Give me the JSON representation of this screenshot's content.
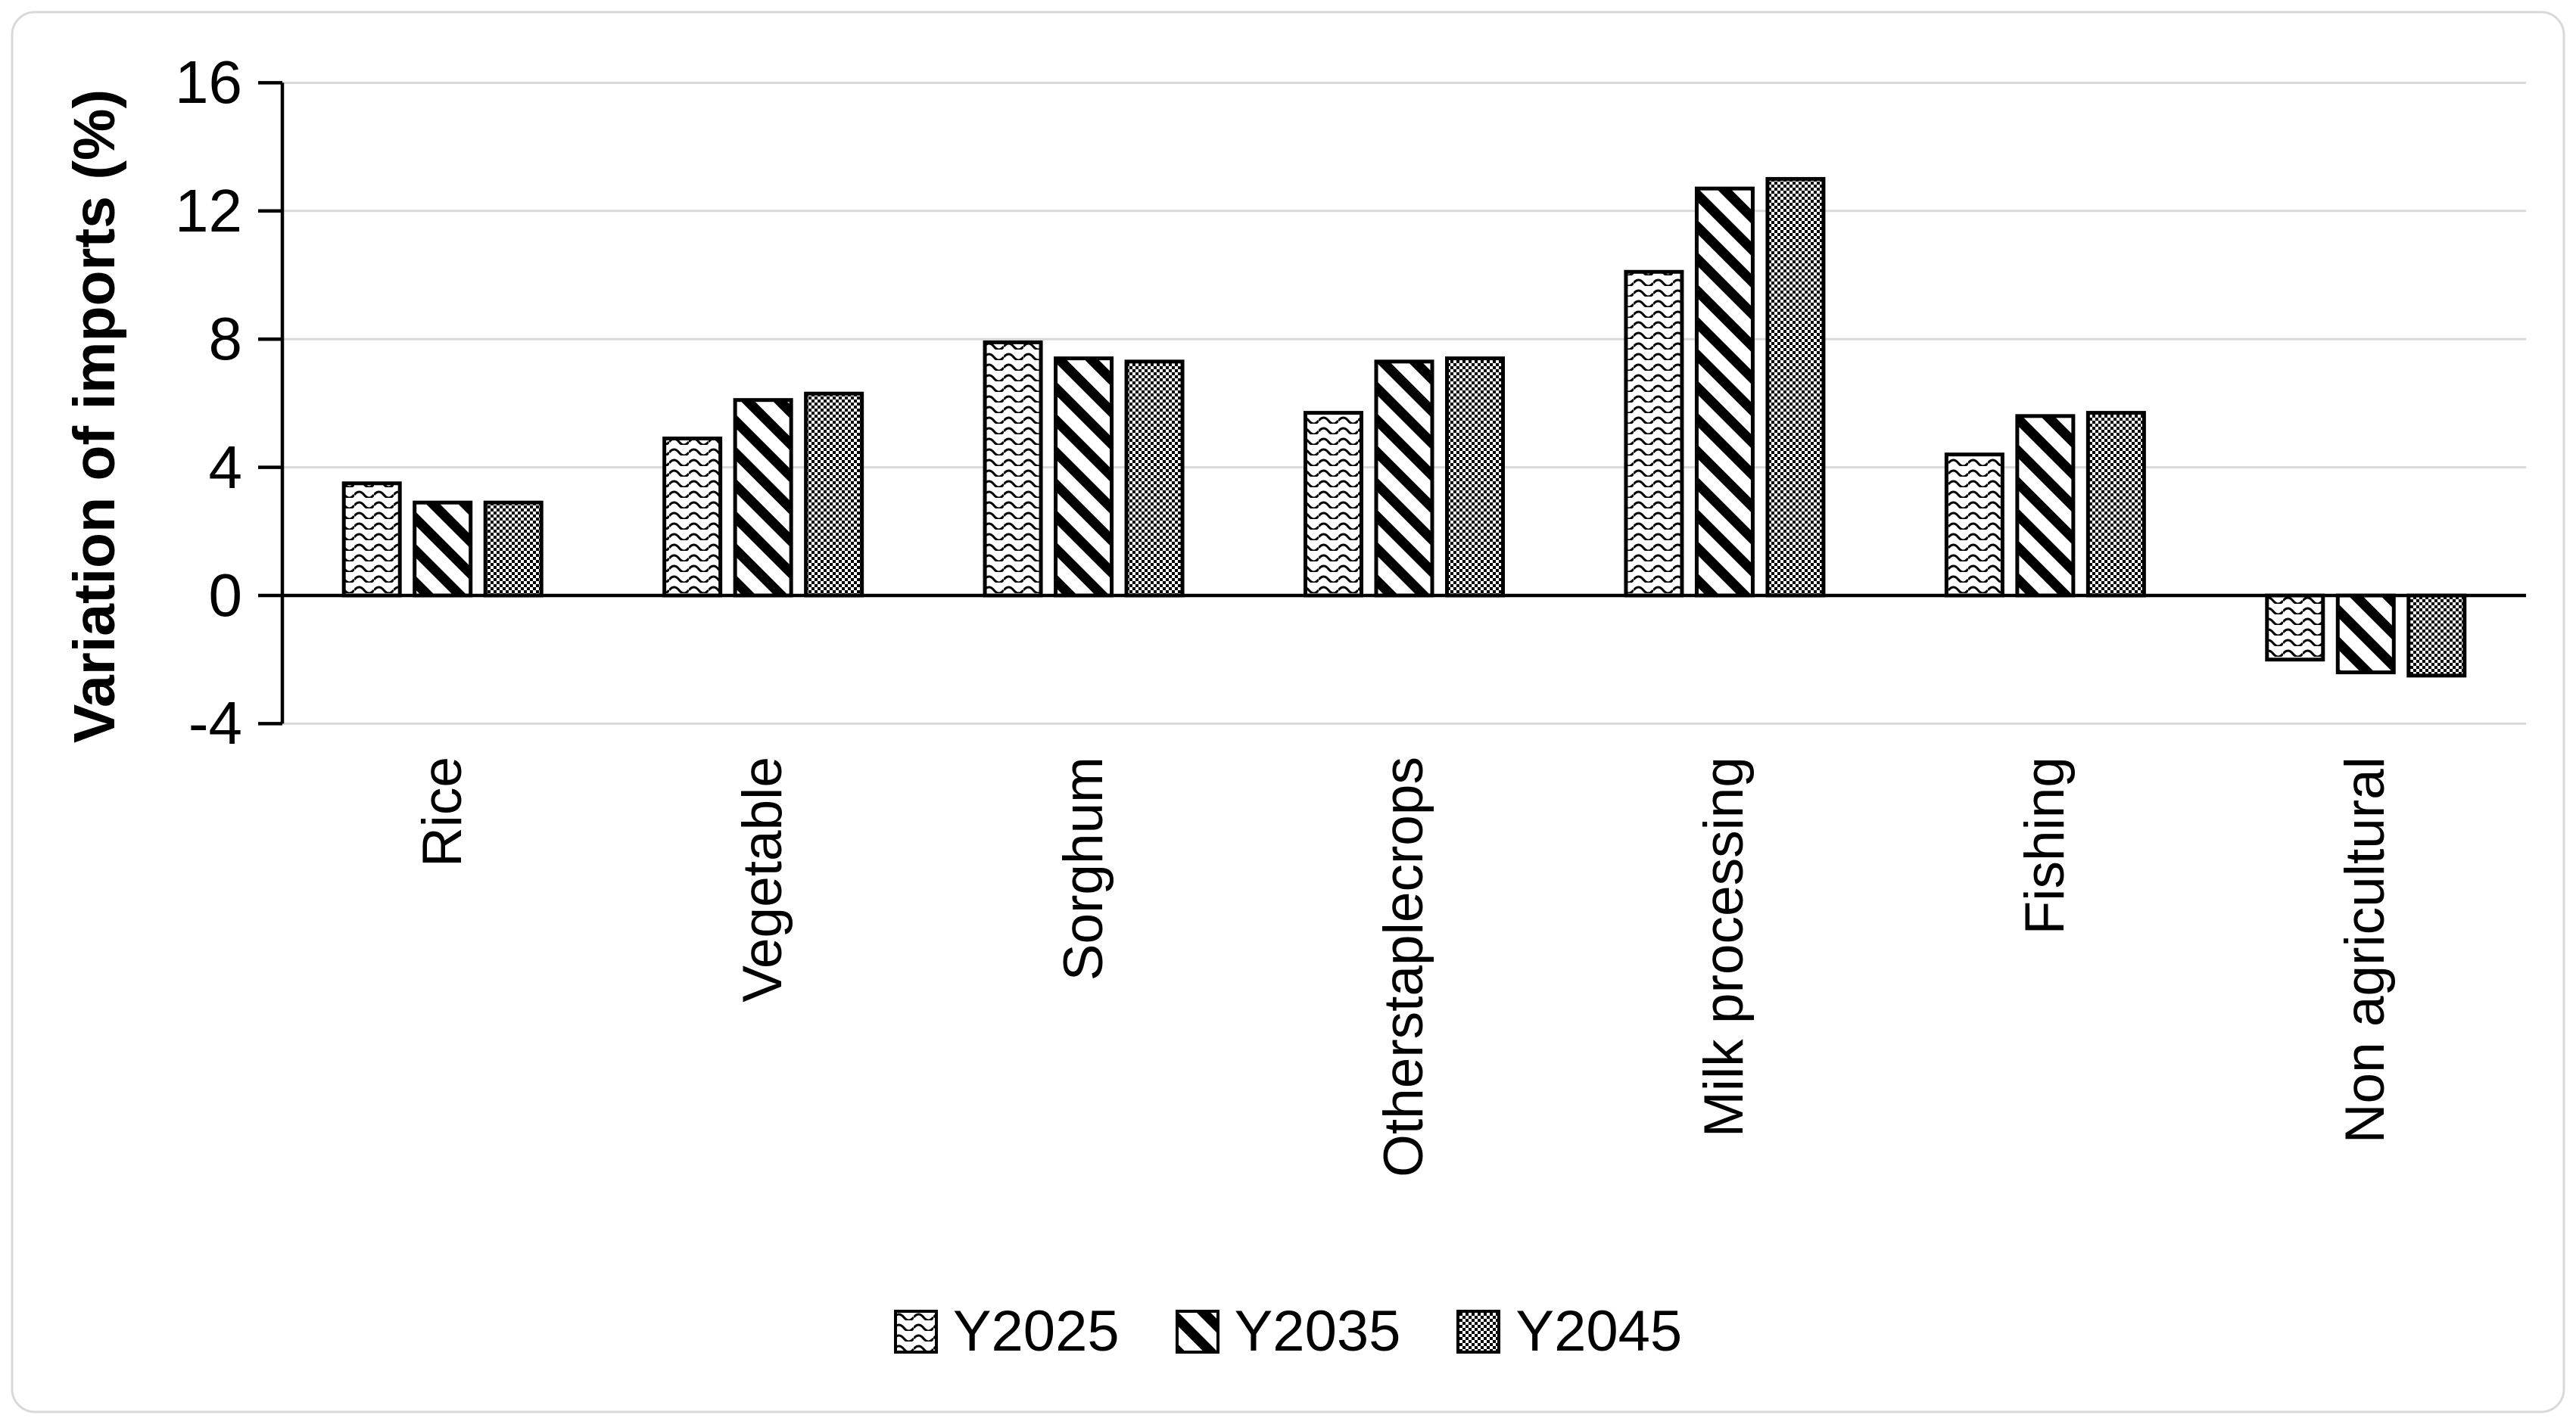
{
  "chart_data": {
    "type": "bar",
    "title": "",
    "ylabel": "Variation of imports (%)",
    "xlabel": "",
    "ylim": [
      -4,
      16
    ],
    "ytick_interval": 4,
    "yticks": [
      16,
      12,
      8,
      4,
      0,
      -4
    ],
    "grid": "horizontal",
    "legend_position": "bottom",
    "categories": [
      "Rice",
      "Vegetable",
      "Sorghum",
      "Otherstaplecrops",
      "Milk processing",
      "Fishing",
      "Non agricultural"
    ],
    "series": [
      {
        "name": "Y2025",
        "pattern": "wave",
        "values": [
          3.5,
          4.9,
          7.9,
          5.7,
          10.1,
          4.4,
          -2.0
        ]
      },
      {
        "name": "Y2035",
        "pattern": "diagonal-stripes",
        "values": [
          2.9,
          6.1,
          7.4,
          7.3,
          12.7,
          5.6,
          -2.4
        ]
      },
      {
        "name": "Y2045",
        "pattern": "checkerboard",
        "values": [
          2.9,
          6.3,
          7.3,
          7.4,
          13.0,
          5.7,
          -2.5
        ]
      }
    ],
    "colors": {
      "bar_fill_base": "#ffffff",
      "bar_pattern": "#000000",
      "bar_outline": "#000000",
      "axis": "#000000",
      "gridline": "#d9d9d9",
      "figure_border": "#d9d9d9",
      "background": "#ffffff",
      "text": "#000000"
    }
  }
}
